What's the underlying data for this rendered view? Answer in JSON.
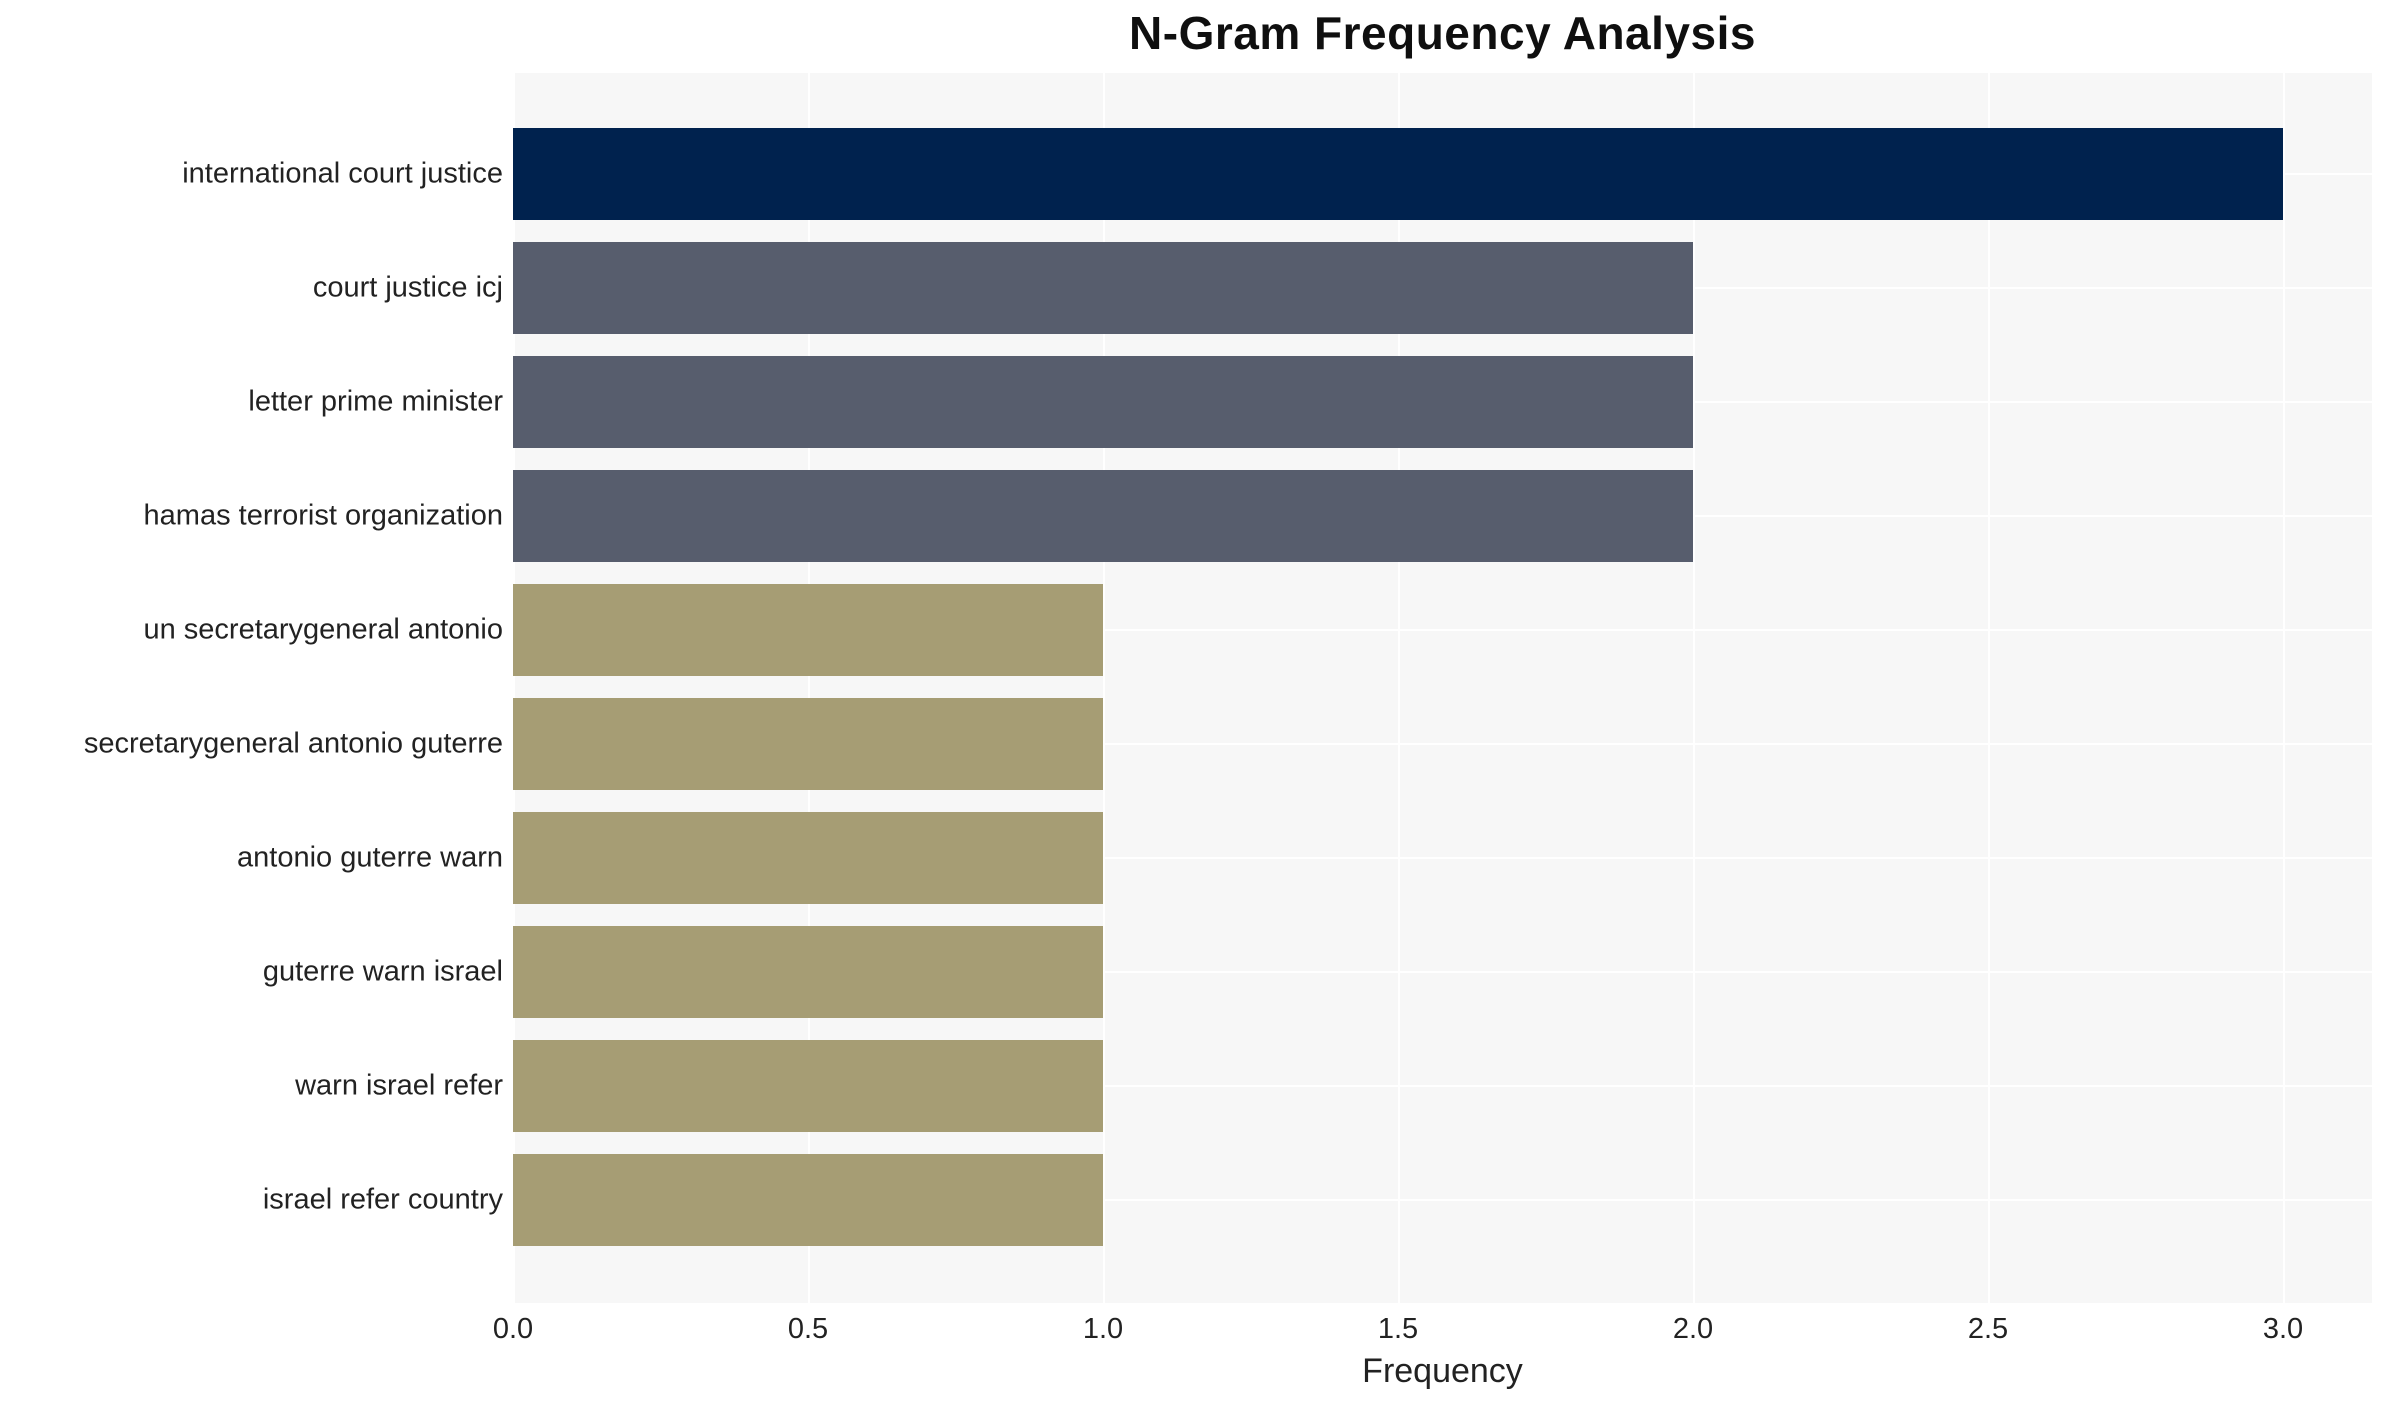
{
  "chart_data": {
    "type": "bar",
    "orientation": "horizontal",
    "title": "N-Gram Frequency Analysis",
    "xlabel": "Frequency",
    "ylabel": "",
    "categories": [
      "international court justice",
      "court justice icj",
      "letter prime minister",
      "hamas terrorist organization",
      "un secretarygeneral antonio",
      "secretarygeneral antonio guterre",
      "antonio guterre warn",
      "guterre warn israel",
      "warn israel refer",
      "israel refer country"
    ],
    "values": [
      3,
      2,
      2,
      2,
      1,
      1,
      1,
      1,
      1,
      1
    ],
    "bar_colors": [
      "#00224e",
      "#575d6d",
      "#575d6d",
      "#575d6d",
      "#a69d74",
      "#a69d74",
      "#a69d74",
      "#a69d74",
      "#a69d74",
      "#a69d74"
    ],
    "xticks": [
      "0.0",
      "0.5",
      "1.0",
      "1.5",
      "2.0",
      "2.5",
      "3.0"
    ],
    "xtick_values": [
      0,
      0.5,
      1,
      1.5,
      2,
      2.5,
      3
    ],
    "xlim": [
      0,
      3.15
    ],
    "grid": true,
    "grid_color": "#ffffff",
    "plot_background": "#f7f7f7",
    "page_background": "#ffffff"
  }
}
